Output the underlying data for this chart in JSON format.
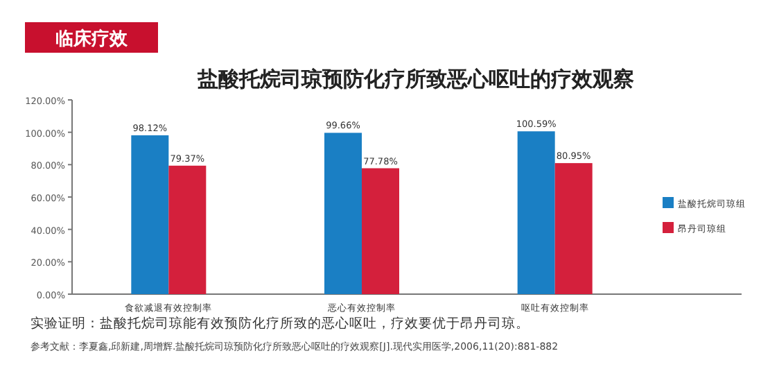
{
  "chart_data": {
    "type": "bar",
    "title": "盐酸托烷司琼预防化疗所致恶心呕吐的疗效观察",
    "categories": [
      "食欲减退有效控制率",
      "恶心有效控制率",
      "呕吐有效控制率"
    ],
    "series": [
      {
        "name": "盐酸托烷司琼组",
        "color": "#1a7fc4",
        "values": [
          98.12,
          99.66,
          100.59
        ]
      },
      {
        "name": "昂丹司琼组",
        "color": "#d4203c",
        "values": [
          79.37,
          77.78,
          80.95
        ]
      }
    ],
    "ylim": [
      0,
      120
    ],
    "yticks": [
      {
        "value": 0,
        "label": "0.00%"
      },
      {
        "value": 20,
        "label": "20.00%"
      },
      {
        "value": 40,
        "label": "40.00%"
      },
      {
        "value": 60,
        "label": "60.00%"
      },
      {
        "value": 80,
        "label": "80.00%"
      },
      {
        "value": 100,
        "label": "100.00%"
      },
      {
        "value": 120,
        "label": "120.00%"
      }
    ],
    "value_labels": [
      [
        "98.12%",
        "99.66%",
        "100.59%"
      ],
      [
        "79.37%",
        "77.78%",
        "80.95%"
      ]
    ],
    "legend": "right",
    "grid": false,
    "annotations": [
      "临床疗效",
      "实验证明：盐酸托烷司琼能有效预防化疗所致的恶心呕吐，疗效要优于昂丹司琼。",
      "参考文献：李夏鑫,邱新建,周增辉.盐酸托烷司琼预防化疗所致恶心呕吐的疗效观察[J].现代实用医学,2006,11(20):881-882"
    ]
  }
}
